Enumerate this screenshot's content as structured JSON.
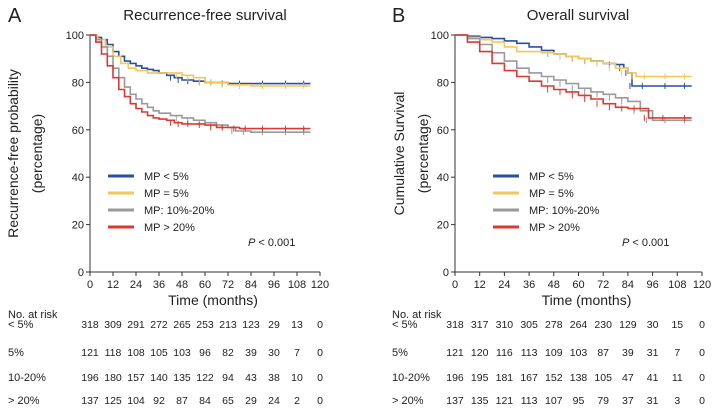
{
  "colors": {
    "mp_lt5": "#2b4fa0",
    "mp_eq5": "#f2c75c",
    "mp_10_20": "#9a9a9a",
    "mp_gt20": "#d93a32",
    "axis": "#333333"
  },
  "chart_data": [
    {
      "type": "line",
      "subtype": "kaplan-meier",
      "panel_letter": "A",
      "title": "Recurrence-free survival",
      "xlabel": "Time (months)",
      "ylabel_line1": "Recurrence-free probability",
      "ylabel_line2": "(percentage)",
      "xlim": [
        0,
        120
      ],
      "ylim": [
        0,
        100
      ],
      "xticks": [
        "0",
        "12",
        "24",
        "36",
        "48",
        "60",
        "72",
        "84",
        "96",
        "108",
        "120"
      ],
      "yticks": [
        "0",
        "20",
        "40",
        "60",
        "80",
        "100"
      ],
      "p_label": "P",
      "p_value": " < 0.001",
      "legend": [
        "MP < 5%",
        "MP = 5%",
        "MP: 10%-20%",
        "MP > 20%"
      ],
      "series": [
        {
          "name": "MP < 5%",
          "color_key": "mp_lt5",
          "points": [
            [
              0,
              100
            ],
            [
              3,
              99
            ],
            [
              6,
              98
            ],
            [
              9,
              96
            ],
            [
              12,
              93
            ],
            [
              15,
              91
            ],
            [
              18,
              89
            ],
            [
              21,
              88
            ],
            [
              24,
              87
            ],
            [
              27,
              86
            ],
            [
              30,
              85.5
            ],
            [
              33,
              85
            ],
            [
              36,
              84
            ],
            [
              40,
              83
            ],
            [
              44,
              82
            ],
            [
              48,
              81
            ],
            [
              54,
              80.5
            ],
            [
              60,
              80
            ],
            [
              66,
              80
            ],
            [
              72,
              79.5
            ],
            [
              84,
              79.5
            ],
            [
              96,
              79.5
            ],
            [
              108,
              79.5
            ],
            [
              115,
              79.5
            ]
          ]
        },
        {
          "name": "MP = 5%",
          "color_key": "mp_eq5",
          "points": [
            [
              0,
              100
            ],
            [
              4,
              98
            ],
            [
              8,
              95
            ],
            [
              12,
              91
            ],
            [
              16,
              88
            ],
            [
              20,
              86
            ],
            [
              24,
              85
            ],
            [
              30,
              84
            ],
            [
              36,
              84
            ],
            [
              42,
              84
            ],
            [
              48,
              83
            ],
            [
              54,
              82
            ],
            [
              60,
              80
            ],
            [
              66,
              80
            ],
            [
              72,
              79
            ],
            [
              84,
              78.5
            ],
            [
              96,
              78.5
            ],
            [
              108,
              78.5
            ],
            [
              115,
              78.5
            ]
          ]
        },
        {
          "name": "MP: 10%-20%",
          "color_key": "mp_10_20",
          "points": [
            [
              0,
              100
            ],
            [
              3,
              98
            ],
            [
              6,
              95
            ],
            [
              9,
              91
            ],
            [
              12,
              86
            ],
            [
              15,
              82
            ],
            [
              18,
              78
            ],
            [
              21,
              75
            ],
            [
              24,
              73
            ],
            [
              27,
              71
            ],
            [
              30,
              69.5
            ],
            [
              33,
              68
            ],
            [
              36,
              67
            ],
            [
              42,
              66
            ],
            [
              48,
              65
            ],
            [
              54,
              64
            ],
            [
              60,
              63
            ],
            [
              66,
              62
            ],
            [
              72,
              61
            ],
            [
              76,
              59.5
            ],
            [
              84,
              59
            ],
            [
              96,
              59
            ],
            [
              108,
              59
            ],
            [
              115,
              59
            ]
          ]
        },
        {
          "name": "MP > 20%",
          "color_key": "mp_gt20",
          "points": [
            [
              0,
              100
            ],
            [
              3,
              97
            ],
            [
              6,
              92
            ],
            [
              9,
              87
            ],
            [
              12,
              82
            ],
            [
              15,
              77
            ],
            [
              18,
              74
            ],
            [
              21,
              71
            ],
            [
              24,
              69
            ],
            [
              27,
              67.5
            ],
            [
              30,
              66
            ],
            [
              33,
              65
            ],
            [
              36,
              64.5
            ],
            [
              40,
              64
            ],
            [
              44,
              63
            ],
            [
              48,
              62.5
            ],
            [
              54,
              62.5
            ],
            [
              60,
              62
            ],
            [
              66,
              61
            ],
            [
              72,
              61
            ],
            [
              78,
              60.5
            ],
            [
              84,
              60.5
            ],
            [
              96,
              60.5
            ],
            [
              108,
              60.5
            ],
            [
              115,
              60.5
            ]
          ]
        }
      ],
      "risk_table": {
        "header": "No. at risk",
        "rows": [
          {
            "label": "< 5%",
            "values": [
              "318",
              "309",
              "291",
              "272",
              "265",
              "253",
              "213",
              "123",
              "29",
              "13",
              "0"
            ]
          },
          {
            "label": "5%",
            "values": [
              "121",
              "118",
              "108",
              "105",
              "103",
              "96",
              "82",
              "39",
              "30",
              "7",
              "0"
            ]
          },
          {
            "label": "10-20%",
            "values": [
              "196",
              "180",
              "157",
              "140",
              "135",
              "122",
              "94",
              "43",
              "38",
              "10",
              "0"
            ]
          },
          {
            "label": "> 20%",
            "values": [
              "137",
              "125",
              "104",
              "92",
              "87",
              "84",
              "65",
              "29",
              "24",
              "2",
              "0"
            ]
          }
        ]
      }
    },
    {
      "type": "line",
      "subtype": "kaplan-meier",
      "panel_letter": "B",
      "title": "Overall survival",
      "xlabel": "Time (months)",
      "ylabel_line1": "Cumulative Survival",
      "ylabel_line2": "(percentage)",
      "xlim": [
        0,
        120
      ],
      "ylim": [
        0,
        100
      ],
      "xticks": [
        "0",
        "12",
        "24",
        "36",
        "48",
        "60",
        "72",
        "84",
        "96",
        "108",
        "120"
      ],
      "yticks": [
        "0",
        "20",
        "40",
        "60",
        "80",
        "100"
      ],
      "p_label": "P",
      "p_value": " < 0.001",
      "legend": [
        "MP < 5%",
        "MP = 5%",
        "MP: 10%-20%",
        "MP > 20%"
      ],
      "series": [
        {
          "name": "MP < 5%",
          "color_key": "mp_lt5",
          "points": [
            [
              0,
              100
            ],
            [
              6,
              99.5
            ],
            [
              12,
              99
            ],
            [
              18,
              98.5
            ],
            [
              24,
              97.5
            ],
            [
              30,
              96.5
            ],
            [
              36,
              95
            ],
            [
              42,
              93.5
            ],
            [
              48,
              92
            ],
            [
              54,
              91
            ],
            [
              60,
              90
            ],
            [
              66,
              89
            ],
            [
              72,
              88
            ],
            [
              78,
              87.5
            ],
            [
              82,
              86
            ],
            [
              84,
              84
            ],
            [
              86,
              78.5
            ],
            [
              96,
              78.5
            ],
            [
              108,
              78.5
            ],
            [
              115,
              78.5
            ]
          ]
        },
        {
          "name": "MP = 5%",
          "color_key": "mp_eq5",
          "points": [
            [
              0,
              100
            ],
            [
              6,
              99
            ],
            [
              12,
              98
            ],
            [
              18,
              97
            ],
            [
              24,
              95
            ],
            [
              30,
              93
            ],
            [
              36,
              93
            ],
            [
              42,
              92.5
            ],
            [
              48,
              92
            ],
            [
              54,
              91
            ],
            [
              60,
              90
            ],
            [
              66,
              89
            ],
            [
              72,
              88
            ],
            [
              78,
              86
            ],
            [
              84,
              84
            ],
            [
              88,
              82.5
            ],
            [
              96,
              82.5
            ],
            [
              108,
              82.5
            ],
            [
              115,
              82.5
            ]
          ]
        },
        {
          "name": "MP: 10%-20%",
          "color_key": "mp_10_20",
          "points": [
            [
              0,
              100
            ],
            [
              6,
              98.5
            ],
            [
              12,
              96
            ],
            [
              18,
              92.5
            ],
            [
              24,
              89
            ],
            [
              30,
              86
            ],
            [
              36,
              84
            ],
            [
              42,
              82.5
            ],
            [
              48,
              81
            ],
            [
              54,
              79.5
            ],
            [
              60,
              77.5
            ],
            [
              66,
              76
            ],
            [
              72,
              75
            ],
            [
              78,
              73.5
            ],
            [
              84,
              72
            ],
            [
              90,
              68
            ],
            [
              96,
              64
            ],
            [
              108,
              64
            ],
            [
              115,
              64
            ]
          ]
        },
        {
          "name": "MP > 20%",
          "color_key": "mp_gt20",
          "points": [
            [
              0,
              100
            ],
            [
              6,
              97
            ],
            [
              12,
              93
            ],
            [
              18,
              88
            ],
            [
              24,
              85
            ],
            [
              30,
              82.5
            ],
            [
              36,
              80.5
            ],
            [
              42,
              78.5
            ],
            [
              48,
              77
            ],
            [
              54,
              76
            ],
            [
              60,
              74.5
            ],
            [
              66,
              73
            ],
            [
              72,
              71
            ],
            [
              78,
              69.5
            ],
            [
              84,
              69
            ],
            [
              90,
              69
            ],
            [
              94,
              65
            ],
            [
              108,
              65
            ],
            [
              115,
              65
            ]
          ]
        }
      ],
      "risk_table": {
        "header": "No. at risk",
        "rows": [
          {
            "label": "< 5%",
            "values": [
              "318",
              "317",
              "310",
              "305",
              "278",
              "264",
              "230",
              "129",
              "30",
              "15",
              "0"
            ]
          },
          {
            "label": "5%",
            "values": [
              "121",
              "120",
              "116",
              "113",
              "109",
              "103",
              "87",
              "39",
              "31",
              "7",
              "0"
            ]
          },
          {
            "label": "10-20%",
            "values": [
              "196",
              "195",
              "181",
              "167",
              "152",
              "138",
              "105",
              "47",
              "41",
              "11",
              "0"
            ]
          },
          {
            "label": "> 20%",
            "values": [
              "137",
              "135",
              "121",
              "113",
              "107",
              "95",
              "79",
              "37",
              "31",
              "3",
              "0"
            ]
          }
        ]
      }
    }
  ]
}
